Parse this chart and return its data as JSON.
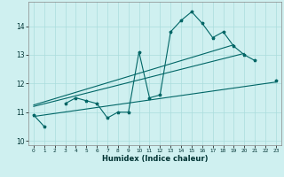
{
  "xlabel": "Humidex (Indice chaleur)",
  "bg_color": "#cff0f0",
  "line_color": "#006666",
  "grid_color": "#aadddd",
  "xlim": [
    -0.5,
    23.5
  ],
  "ylim": [
    9.85,
    14.85
  ],
  "yticks": [
    10,
    11,
    12,
    13,
    14
  ],
  "xticks": [
    0,
    1,
    2,
    3,
    4,
    5,
    6,
    7,
    8,
    9,
    10,
    11,
    12,
    13,
    14,
    15,
    16,
    17,
    18,
    19,
    20,
    21,
    22,
    23
  ],
  "series": [
    {
      "x": [
        0,
        1,
        3,
        4,
        5,
        6,
        7,
        8,
        9,
        10,
        11,
        12,
        13,
        14,
        15,
        16,
        17,
        18,
        19,
        20,
        21,
        23
      ],
      "y": [
        10.9,
        10.5,
        11.3,
        11.5,
        11.4,
        11.3,
        10.8,
        11.0,
        11.0,
        13.1,
        11.5,
        11.6,
        13.8,
        14.2,
        14.5,
        14.1,
        13.6,
        13.8,
        13.3,
        13.0,
        12.8,
        12.1
      ],
      "with_markers": true,
      "segments": [
        [
          0,
          1
        ],
        [
          3,
          4,
          5,
          6,
          7,
          8,
          9,
          10,
          11,
          12,
          13,
          14,
          15,
          16,
          17,
          18,
          19,
          20,
          21
        ],
        [
          23
        ]
      ]
    },
    {
      "x": [
        0,
        23
      ],
      "y": [
        10.85,
        12.05
      ],
      "with_markers": false
    },
    {
      "x": [
        0,
        19
      ],
      "y": [
        11.25,
        13.35
      ],
      "with_markers": false
    },
    {
      "x": [
        0,
        20
      ],
      "y": [
        11.2,
        13.05
      ],
      "with_markers": false
    }
  ]
}
